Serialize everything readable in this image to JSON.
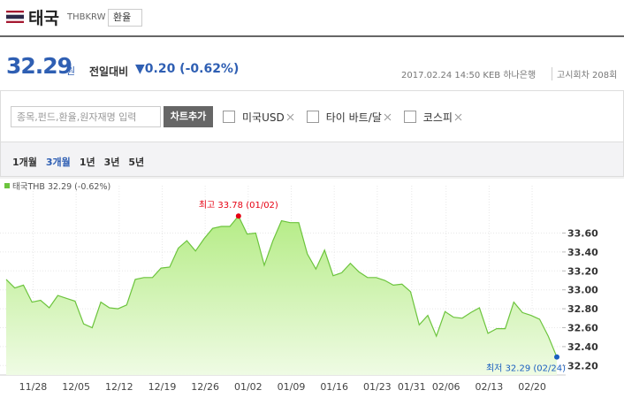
{
  "header": {
    "country": "태국",
    "code": "THBKRW",
    "button": "환율"
  },
  "quote": {
    "price": "32.29",
    "unit": "원",
    "change_label": "전일대비",
    "change": "▼0.20 (-0.62%)",
    "info": "2017.02.24 14:50 KEB 하나은행",
    "round": "고시회차 208회"
  },
  "controls": {
    "search_placeholder": "종목,펀드,환율,원자재명 입력",
    "add_button": "차트추가",
    "compare": [
      "미국USD",
      "타이 바트/달",
      "코스피"
    ]
  },
  "periods": {
    "items": [
      "1개월",
      "3개월",
      "1년",
      "3년",
      "5년"
    ],
    "active": 1
  },
  "chart_data": {
    "type": "area",
    "categories": [
      null,
      null,
      "11/28",
      null,
      null,
      null,
      null,
      "12/05",
      null,
      null,
      null,
      null,
      "12/12",
      null,
      null,
      null,
      null,
      "12/19",
      null,
      null,
      null,
      null,
      "12/26",
      null,
      null,
      null,
      null,
      "01/02",
      null,
      null,
      null,
      null,
      "01/09",
      null,
      null,
      null,
      null,
      "01/16",
      null,
      null,
      null,
      null,
      "01/23",
      null,
      null,
      null,
      "01/31",
      null,
      null,
      null,
      "02/06",
      null,
      null,
      null,
      null,
      "02/13",
      null,
      null,
      null,
      null,
      "02/20",
      null,
      null,
      null,
      null
    ],
    "series": [
      {
        "name": "태국THB 32.29 (-0.62%)",
        "color": "#6cc43d",
        "values": [
          33.11,
          33.02,
          33.05,
          32.87,
          32.89,
          32.81,
          32.94,
          32.91,
          32.88,
          32.64,
          32.6,
          32.87,
          32.81,
          32.8,
          32.84,
          33.11,
          33.13,
          33.13,
          33.23,
          33.24,
          33.44,
          33.52,
          33.41,
          33.54,
          33.65,
          33.67,
          33.67,
          33.78,
          33.59,
          33.6,
          33.26,
          33.52,
          33.73,
          33.71,
          33.71,
          33.38,
          33.22,
          33.42,
          33.15,
          33.18,
          33.28,
          33.19,
          33.13,
          33.13,
          33.1,
          33.05,
          33.06,
          32.98,
          32.63,
          32.73,
          32.51,
          32.77,
          32.71,
          32.7,
          32.76,
          32.81,
          32.54,
          32.59,
          32.59,
          32.87,
          32.76,
          32.73,
          32.69,
          32.51,
          32.29
        ]
      }
    ],
    "ylim": [
      32.1,
      34.1
    ],
    "yticks": [
      {
        "value": 32.2,
        "label": "32.20"
      },
      {
        "value": 32.4,
        "label": "32.40"
      },
      {
        "value": 32.6,
        "label": "32.60"
      },
      {
        "value": 32.8,
        "label": "32.80"
      },
      {
        "value": 33.0,
        "label": "33.00"
      },
      {
        "value": 33.2,
        "label": "33.20"
      },
      {
        "value": 33.4,
        "label": "33.40"
      },
      {
        "value": 33.6,
        "label": "33.60"
      }
    ],
    "grid": true,
    "annotations": {
      "high": {
        "text": "최고 33.78 (01/02)",
        "color": "#e60012"
      },
      "low": {
        "text": "최저 32.29 (02/24)",
        "color": "#1a5fbf"
      }
    }
  }
}
